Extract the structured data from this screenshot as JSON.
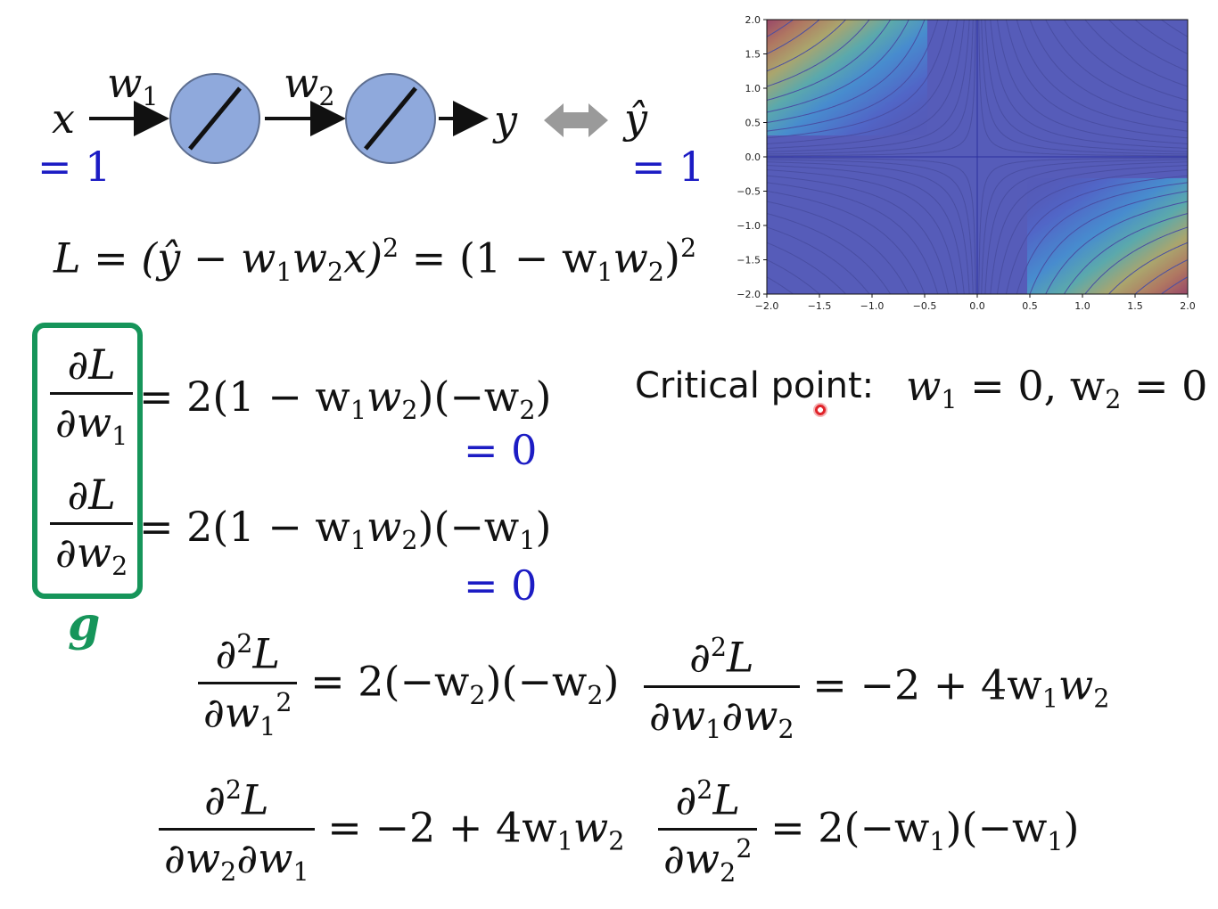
{
  "network": {
    "x": "x",
    "x_value": "= 1",
    "w1": "w",
    "w1_sub": "1",
    "w2": "w",
    "w2_sub": "2",
    "y": "y",
    "yhat": "ŷ",
    "yhat_value": "= 1"
  },
  "loss": {
    "lhs": "L = (ŷ − w",
    "s1": "1",
    "m1": "w",
    "s2": "2",
    "x": "x)",
    "p1": "2",
    "mid": " = (1 − w",
    "s3": "1",
    "m2": "w",
    "s4": "2",
    "close": ")",
    "p2": "2"
  },
  "gradient": {
    "d1_num": "∂L",
    "d1_den": "∂w",
    "d1_sub": "1",
    "d1_rhs_a": "= 2(1 − w",
    "d1_s1": "1",
    "d1_rhs_b": "w",
    "d1_s2": "2",
    "d1_rhs_c": ")(−w",
    "d1_s3": "2",
    "d1_rhs_d": ")",
    "d1_zero": "= 0",
    "d2_num": "∂L",
    "d2_den": "∂w",
    "d2_sub": "2",
    "d2_rhs_a": "= 2(1 − w",
    "d2_s1": "1",
    "d2_rhs_b": "w",
    "d2_s2": "2",
    "d2_rhs_c": ")(−w",
    "d2_s3": "1",
    "d2_rhs_d": ")",
    "d2_zero": "= 0",
    "label": "g"
  },
  "critical": {
    "label": "Critical point:",
    "eq_a": "w",
    "s1": "1",
    "eq_b": " = 0, w",
    "s2": "2",
    "eq_c": " = 0"
  },
  "hessian": {
    "h11_num": "∂",
    "h11_num_p": "2",
    "h11_num_L": "L",
    "h11_den": "∂w",
    "h11_den_s": "1",
    "h11_den_p": "2",
    "h11_rhs": "= 2(−w",
    "h11_r1": "2",
    "h11_rhs2": ")(−w",
    "h11_r2": "2",
    "h11_rhs3": ")",
    "h12_num": "∂",
    "h12_num_p": "2",
    "h12_num_L": "L",
    "h12_den_a": "∂w",
    "h12_den_s1": "1",
    "h12_den_b": "∂w",
    "h12_den_s2": "2",
    "h12_rhs": "= −2 + 4w",
    "h12_r1": "1",
    "h12_rhs2": "w",
    "h12_r2": "2",
    "h21_num": "∂",
    "h21_num_p": "2",
    "h21_num_L": "L",
    "h21_den_a": "∂w",
    "h21_den_s1": "2",
    "h21_den_b": "∂w",
    "h21_den_s2": "1",
    "h21_rhs": "= −2 + 4w",
    "h21_r1": "1",
    "h21_rhs2": "w",
    "h21_r2": "2",
    "h22_num": "∂",
    "h22_num_p": "2",
    "h22_num_L": "L",
    "h22_den": "∂w",
    "h22_den_s": "2",
    "h22_den_p": "2",
    "h22_rhs": "= 2(−w",
    "h22_r1": "1",
    "h22_rhs2": ")(−w",
    "h22_r2": "1",
    "h22_rhs3": ")"
  },
  "contour_plot": {
    "x_ticks": [
      "−2.0",
      "−1.5",
      "−1.0",
      "−0.5",
      "0.0",
      "0.5",
      "1.0",
      "1.5",
      "2.0"
    ],
    "y_ticks": [
      "2.0",
      "1.5",
      "1.0",
      "0.5",
      "0.0",
      "−0.5",
      "−1.0",
      "−1.5",
      "−2.0"
    ],
    "xlim": [
      -2,
      2
    ],
    "ylim": [
      -2,
      2
    ],
    "colormap": "jet",
    "overlay_color": "#6e74b2"
  },
  "colors": {
    "neuron_fill": "#8fa9dc",
    "blue_text": "#1c1cc4",
    "green_box": "#16955a",
    "cursor": "#e0242a"
  }
}
